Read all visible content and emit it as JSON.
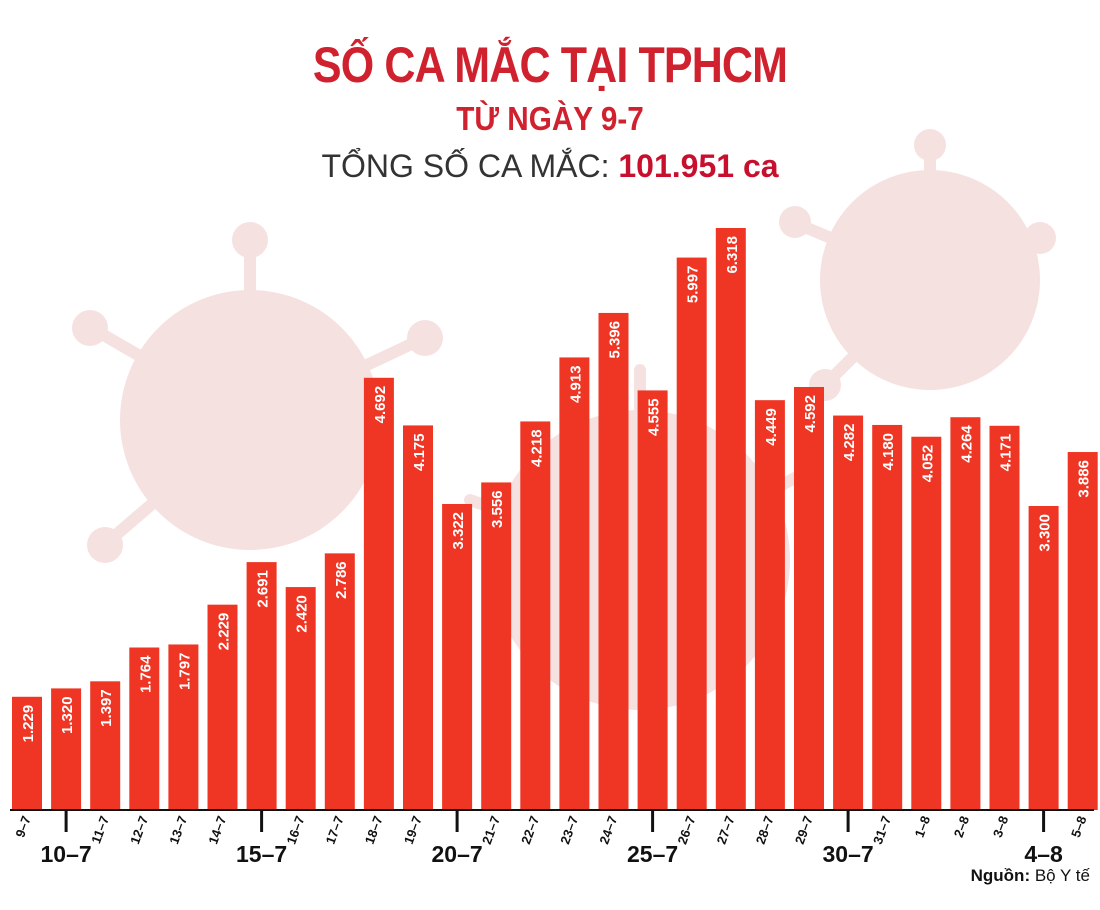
{
  "header": {
    "title": "SỐ CA MẮC TẠI TPHCM",
    "subtitle": "TỪ NGÀY 9-7",
    "total_label": "TỔNG SỐ CA MẮC:",
    "total_value": "101.951 ca"
  },
  "source": {
    "label": "Nguồn:",
    "value": "Bộ Y tế"
  },
  "colors": {
    "bar": "#ef3624",
    "title": "#d0212e",
    "virus": "#f6dede"
  },
  "chart_data": {
    "type": "bar",
    "categories": [
      "9-7",
      "10-7",
      "11-7",
      "12-7",
      "13-7",
      "14-7",
      "15-7",
      "16-7",
      "17-7",
      "18-7",
      "19-7",
      "20-7",
      "21-7",
      "22-7",
      "23-7",
      "24-7",
      "25-7",
      "26-7",
      "27-7",
      "28-7",
      "29-7",
      "30-7",
      "31-7",
      "1-8",
      "2-8",
      "3-8",
      "4-8",
      "5-8"
    ],
    "values": [
      1229,
      1320,
      1397,
      1764,
      1797,
      2229,
      2691,
      2420,
      2786,
      4692,
      4175,
      3322,
      3556,
      4218,
      4913,
      5396,
      4555,
      5997,
      6318,
      4449,
      4592,
      4282,
      4180,
      4052,
      4264,
      4171,
      3300,
      3886
    ],
    "value_labels": [
      "1.229",
      "1.320",
      "1.397",
      "1.764",
      "1.797",
      "2.229",
      "2.691",
      "2.420",
      "2.786",
      "4.692",
      "4.175",
      "3.322",
      "3.556",
      "4.218",
      "4.913",
      "5.396",
      "4.555",
      "5.997",
      "6.318",
      "4.449",
      "4.592",
      "4.282",
      "4.180",
      "4.052",
      "4.264",
      "4.171",
      "3.300",
      "3.886"
    ],
    "tick_labels": [
      "9–7",
      "",
      "11–7",
      "12–7",
      "13–7",
      "14–7",
      "",
      "16–7",
      "17–7",
      "18–7",
      "19–7",
      "",
      "21–7",
      "22–7",
      "23–7",
      "24–7",
      "",
      "26–7",
      "27–7",
      "28–7",
      "29–7",
      "",
      "31–7",
      "1–8",
      "2–8",
      "3–8",
      "",
      "5–8"
    ],
    "major_labels": [
      "10–7",
      "15–7",
      "20–7",
      "25–7",
      "30–7",
      "4–8"
    ],
    "ylim": [
      0,
      6318
    ],
    "grid": false
  }
}
